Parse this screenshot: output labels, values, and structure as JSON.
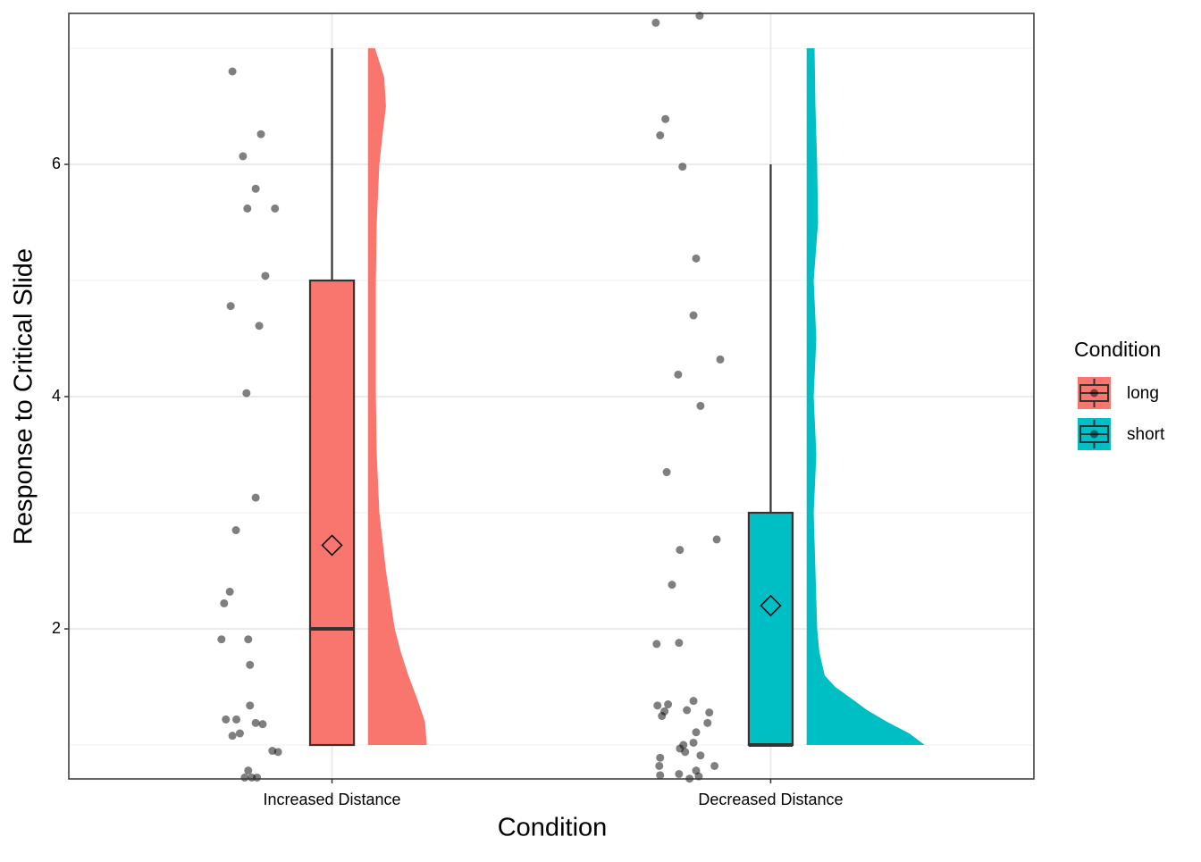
{
  "chart_data": {
    "type": "raincloud",
    "x_label": "Condition",
    "y_label": "Response to Critical Slide",
    "categories": [
      "Increased Distance",
      "Decreased Distance"
    ],
    "xlim": [
      0.4,
      2.6
    ],
    "ylim": [
      0.708,
      7.3
    ],
    "yticks": [
      2,
      4,
      6
    ],
    "yminorticks": [
      1,
      3,
      5,
      7
    ],
    "grid": true,
    "legend_title": "Condition",
    "legend_position": "right",
    "series": [
      {
        "name": "long",
        "color": "#F8766D",
        "box": {
          "min": 1,
          "q1": 1,
          "median": 2,
          "q3": 5,
          "max": 7,
          "mean": 2.72
        },
        "points": {
          "x": [
            0.773,
            0.838,
            0.797,
            0.826,
            0.807,
            0.87,
            0.848,
            0.769,
            0.834,
            0.805,
            0.826,
            0.781,
            0.767,
            0.754,
            0.748,
            0.809,
            0.813,
            0.813,
            0.758,
            0.782,
            0.826,
            0.842,
            0.773,
            0.79,
            0.864,
            0.877,
            0.809,
            0.801,
            0.817,
            0.829
          ],
          "y": [
            6.8,
            6.26,
            6.07,
            5.79,
            5.62,
            5.62,
            5.04,
            4.78,
            4.61,
            4.03,
            3.13,
            2.85,
            2.32,
            2.22,
            1.91,
            1.91,
            1.69,
            1.34,
            1.22,
            1.22,
            1.19,
            1.18,
            1.08,
            1.1,
            0.95,
            0.94,
            0.78,
            0.72,
            0.72,
            0.72
          ]
        },
        "density": {
          "y": [
            1,
            1.2,
            1.4,
            1.6,
            1.8,
            2,
            2.25,
            2.5,
            3,
            3.5,
            4,
            4.5,
            5,
            5.5,
            6,
            6.25,
            6.5,
            6.75,
            7
          ],
          "width": [
            0.134,
            0.13,
            0.112,
            0.092,
            0.075,
            0.061,
            0.051,
            0.041,
            0.026,
            0.02,
            0.018,
            0.018,
            0.018,
            0.02,
            0.026,
            0.033,
            0.041,
            0.037,
            0.016
          ]
        }
      },
      {
        "name": "short",
        "color": "#00BFC4",
        "box": {
          "min": 1,
          "q1": 1,
          "median": 1,
          "q3": 3,
          "max": 6,
          "mean": 2.2
        },
        "points": {
          "x": [
            1.738,
            1.838,
            1.76,
            1.748,
            1.799,
            1.83,
            1.824,
            1.885,
            1.789,
            1.84,
            1.763,
            1.877,
            1.793,
            1.775,
            1.74,
            1.791,
            1.742,
            1.766,
            1.824,
            1.758,
            1.752,
            1.809,
            1.86,
            1.856,
            1.83,
            1.801,
            1.824,
            1.793,
            1.805,
            1.748,
            1.84,
            1.872,
            1.746,
            1.83,
            1.791,
            1.748,
            1.836,
            1.815
          ],
          "y": [
            7.22,
            7.28,
            6.39,
            6.25,
            5.98,
            5.19,
            4.7,
            4.32,
            4.19,
            3.92,
            3.35,
            2.77,
            2.68,
            2.38,
            1.87,
            1.88,
            1.34,
            1.35,
            1.38,
            1.29,
            1.25,
            1.3,
            1.28,
            1.19,
            1.11,
            1,
            1.02,
            0.97,
            0.94,
            0.89,
            0.91,
            0.82,
            0.82,
            0.78,
            0.75,
            0.74,
            0.73,
            0.71
          ]
        },
        "density": {
          "y": [
            1,
            1.1,
            1.2,
            1.3,
            1.4,
            1.5,
            1.6,
            1.8,
            2,
            2.5,
            3,
            3.5,
            4,
            4.5,
            5,
            5.5,
            6,
            6.5,
            7
          ],
          "width": [
            0.269,
            0.234,
            0.183,
            0.138,
            0.102,
            0.065,
            0.041,
            0.029,
            0.024,
            0.02,
            0.016,
            0.022,
            0.016,
            0.022,
            0.016,
            0.026,
            0.024,
            0.02,
            0.018
          ]
        }
      }
    ]
  }
}
